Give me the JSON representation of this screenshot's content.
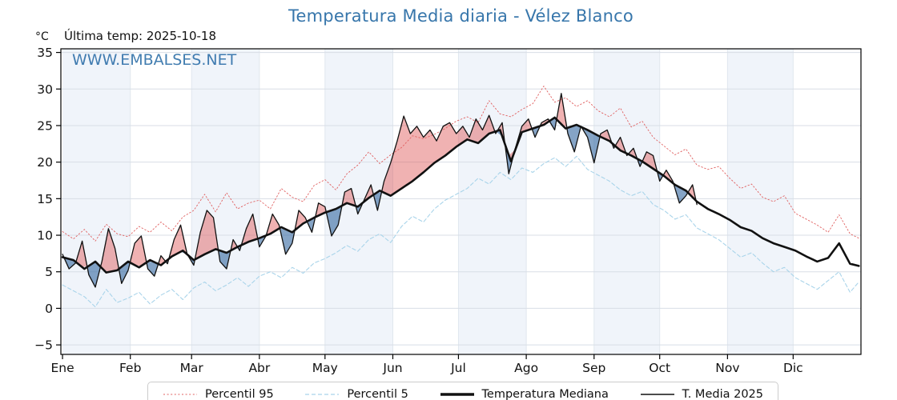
{
  "title": "Temperatura Media diaria - Vélez Blanco",
  "annotation": "Última temp: 2025-10-18",
  "unit": "°C",
  "watermark": "WWW.EMBALSES.NET",
  "colors": {
    "title": "#3776ab",
    "watermark": "#2e6fa8",
    "band": "#f0f4fa",
    "grid_h": "#d8dee6",
    "grid_v": "#e0e7ee",
    "axis": "#000000",
    "fill_above": "rgba(222,84,84,0.45)",
    "fill_below": "rgba(58,108,163,0.62)"
  },
  "chart_data": {
    "type": "line",
    "title": "Temperatura Media diaria - Vélez Blanco",
    "xlabel": "",
    "ylabel": "°C",
    "x_unit": "day_of_year",
    "xlim": [
      -0.75,
      365
    ],
    "ylim": [
      -6.3,
      35.5
    ],
    "grid": true,
    "x_tick_labels": [
      "Ene",
      "Feb",
      "Mar",
      "Abr",
      "May",
      "Jun",
      "Jul",
      "Ago",
      "Sep",
      "Oct",
      "Nov",
      "Dic"
    ],
    "month_start_days": [
      0,
      31,
      59,
      90,
      120,
      151,
      181,
      212,
      243,
      273,
      304,
      334,
      365
    ],
    "y_ticks": [
      -5,
      0,
      5,
      10,
      15,
      20,
      25,
      30,
      35
    ],
    "y_tick_labels": [
      "−5",
      "0",
      "5",
      "10",
      "15",
      "20",
      "25",
      "30",
      "35"
    ],
    "shaded_months": "alternating, starting with Ene",
    "series": [
      {
        "name": "Percentil 95",
        "style": "dotted",
        "color": "#e06060",
        "lw": 0.9,
        "x": [
          0,
          5,
          10,
          15,
          20,
          25,
          30,
          35,
          40,
          45,
          50,
          55,
          60,
          65,
          70,
          75,
          80,
          85,
          90,
          95,
          100,
          105,
          110,
          115,
          120,
          125,
          130,
          135,
          140,
          145,
          150,
          155,
          160,
          165,
          170,
          175,
          180,
          185,
          190,
          195,
          200,
          205,
          210,
          215,
          220,
          225,
          230,
          235,
          240,
          245,
          250,
          255,
          260,
          265,
          270,
          275,
          280,
          285,
          290,
          295,
          300,
          305,
          310,
          315,
          320,
          325,
          330,
          335,
          340,
          345,
          350,
          355,
          360,
          364
        ],
        "values": [
          10.5,
          9.5,
          10.8,
          9.2,
          11.5,
          10.2,
          9.8,
          11.2,
          10.4,
          11.8,
          10.6,
          12.5,
          13.4,
          15.6,
          13.2,
          15.8,
          13.6,
          14.4,
          14.8,
          13.6,
          16.4,
          15.2,
          14.6,
          16.8,
          17.6,
          16.2,
          18.4,
          19.6,
          21.4,
          19.8,
          21.0,
          22.0,
          23.6,
          23.2,
          23.8,
          24.6,
          25.6,
          26.2,
          25.4,
          28.4,
          26.6,
          26.2,
          27.2,
          28.0,
          30.4,
          28.2,
          28.8,
          27.6,
          28.4,
          27.0,
          26.2,
          27.4,
          24.8,
          25.6,
          23.4,
          22.2,
          21.0,
          21.8,
          19.6,
          19.0,
          19.4,
          17.8,
          16.4,
          17.0,
          15.2,
          14.6,
          15.4,
          13.0,
          12.2,
          11.4,
          10.4,
          12.8,
          10.2,
          9.6
        ]
      },
      {
        "name": "Percentil 5",
        "style": "dashed",
        "color": "#a9d4ea",
        "lw": 1.1,
        "x": [
          0,
          5,
          10,
          15,
          20,
          25,
          30,
          35,
          40,
          45,
          50,
          55,
          60,
          65,
          70,
          75,
          80,
          85,
          90,
          95,
          100,
          105,
          110,
          115,
          120,
          125,
          130,
          135,
          140,
          145,
          150,
          155,
          160,
          165,
          170,
          175,
          180,
          185,
          190,
          195,
          200,
          205,
          210,
          215,
          220,
          225,
          230,
          235,
          240,
          245,
          250,
          255,
          260,
          265,
          270,
          275,
          280,
          285,
          290,
          295,
          300,
          305,
          310,
          315,
          320,
          325,
          330,
          335,
          340,
          345,
          350,
          355,
          360,
          364
        ],
        "values": [
          3.2,
          2.4,
          1.6,
          0.2,
          2.6,
          0.8,
          1.4,
          2.2,
          0.6,
          1.8,
          2.6,
          1.2,
          2.8,
          3.6,
          2.4,
          3.2,
          4.2,
          3.0,
          4.4,
          5.0,
          4.2,
          5.6,
          4.8,
          6.2,
          6.8,
          7.6,
          8.6,
          7.8,
          9.4,
          10.2,
          9.0,
          11.2,
          12.6,
          11.8,
          13.6,
          14.8,
          15.6,
          16.4,
          17.8,
          17.0,
          18.6,
          17.6,
          19.2,
          18.6,
          19.8,
          20.6,
          19.4,
          20.8,
          19.0,
          18.2,
          17.4,
          16.2,
          15.4,
          16.0,
          14.2,
          13.4,
          12.2,
          12.8,
          11.0,
          10.2,
          9.4,
          8.2,
          7.0,
          7.6,
          6.2,
          5.0,
          5.6,
          4.2,
          3.4,
          2.6,
          3.8,
          5.0,
          2.2,
          3.6
        ]
      },
      {
        "name": "Temperatura Mediana",
        "style": "solid",
        "color": "#111111",
        "lw": 2.6,
        "x": [
          0,
          5,
          10,
          15,
          20,
          25,
          30,
          35,
          40,
          45,
          50,
          55,
          60,
          65,
          70,
          75,
          80,
          85,
          90,
          95,
          100,
          105,
          110,
          115,
          120,
          125,
          130,
          135,
          140,
          145,
          150,
          155,
          160,
          165,
          170,
          175,
          180,
          185,
          190,
          195,
          200,
          205,
          210,
          215,
          220,
          225,
          230,
          235,
          240,
          245,
          250,
          255,
          260,
          265,
          270,
          275,
          280,
          285,
          290,
          295,
          300,
          305,
          310,
          315,
          320,
          325,
          330,
          335,
          340,
          345,
          350,
          355,
          360,
          364
        ],
        "values": [
          7.0,
          6.6,
          5.4,
          6.4,
          4.9,
          5.2,
          6.4,
          5.6,
          6.6,
          5.9,
          7.1,
          7.9,
          6.6,
          7.4,
          8.1,
          7.6,
          8.4,
          9.1,
          9.6,
          10.2,
          11.1,
          10.4,
          11.6,
          12.4,
          13.1,
          13.6,
          14.4,
          13.9,
          15.1,
          16.1,
          15.4,
          16.4,
          17.4,
          18.6,
          19.9,
          20.9,
          22.1,
          23.1,
          22.6,
          23.9,
          24.4,
          20.1,
          24.1,
          24.6,
          25.1,
          26.1,
          24.6,
          25.1,
          24.4,
          23.6,
          22.9,
          21.6,
          20.9,
          20.1,
          19.1,
          18.1,
          16.9,
          16.1,
          14.6,
          13.6,
          12.9,
          12.1,
          11.1,
          10.6,
          9.6,
          8.9,
          8.4,
          7.9,
          7.1,
          6.4,
          6.9,
          8.9,
          6.1,
          5.8
        ]
      },
      {
        "name": "T. Media 2025",
        "style": "solid",
        "color": "#111111",
        "lw": 1.3,
        "last_date": "2025-10-18",
        "x": [
          0,
          3,
          6,
          9,
          12,
          15,
          18,
          21,
          24,
          27,
          30,
          33,
          36,
          39,
          42,
          45,
          48,
          51,
          54,
          57,
          60,
          63,
          66,
          69,
          72,
          75,
          78,
          81,
          84,
          87,
          90,
          93,
          96,
          99,
          102,
          105,
          108,
          111,
          114,
          117,
          120,
          123,
          126,
          129,
          132,
          135,
          138,
          141,
          144,
          147,
          150,
          153,
          156,
          159,
          162,
          165,
          168,
          171,
          174,
          177,
          180,
          183,
          186,
          189,
          192,
          195,
          198,
          201,
          204,
          207,
          210,
          213,
          216,
          219,
          222,
          225,
          228,
          231,
          234,
          237,
          240,
          243,
          246,
          249,
          252,
          255,
          258,
          261,
          264,
          267,
          270,
          273,
          276,
          279,
          282,
          285,
          288,
          290
        ],
        "values": [
          7.4,
          5.4,
          6.2,
          9.2,
          4.6,
          2.9,
          6.4,
          10.9,
          8.2,
          3.4,
          5.2,
          8.9,
          9.9,
          5.4,
          4.4,
          7.2,
          6.1,
          9.4,
          11.4,
          7.4,
          5.9,
          10.4,
          13.4,
          12.4,
          6.4,
          5.4,
          9.4,
          7.9,
          10.9,
          12.9,
          8.4,
          9.9,
          12.9,
          11.4,
          7.4,
          8.9,
          13.4,
          12.4,
          10.4,
          14.4,
          13.9,
          9.9,
          11.4,
          15.9,
          16.4,
          12.9,
          14.9,
          16.9,
          13.4,
          17.4,
          19.9,
          22.9,
          26.3,
          23.9,
          24.9,
          23.4,
          24.4,
          22.9,
          24.9,
          25.4,
          23.9,
          24.9,
          23.4,
          25.9,
          24.4,
          26.4,
          23.9,
          25.4,
          18.4,
          21.9,
          24.9,
          25.9,
          23.4,
          25.4,
          25.9,
          24.4,
          29.4,
          23.9,
          21.4,
          24.9,
          23.4,
          19.9,
          23.9,
          24.4,
          21.9,
          23.4,
          20.9,
          21.9,
          19.4,
          21.4,
          20.9,
          17.4,
          18.9,
          17.4,
          14.4,
          15.4,
          16.9,
          14.2
        ]
      }
    ],
    "fills": {
      "between": [
        "T. Media 2025",
        "Temperatura Mediana"
      ],
      "above_color": "rgba(222,84,84,0.45)",
      "below_color": "rgba(58,108,163,0.62)"
    },
    "legend": {
      "position": "bottom",
      "entries": [
        {
          "label": "Percentil 95",
          "style": "dotted",
          "color": "#e06060",
          "lw": 1
        },
        {
          "label": "Percentil 5",
          "style": "dashed",
          "color": "#a9d4ea",
          "lw": 1.2
        },
        {
          "label": "Temperatura Mediana",
          "style": "solid",
          "color": "#111111",
          "lw": 3.5
        },
        {
          "label": "T. Media 2025",
          "style": "solid",
          "color": "#111111",
          "lw": 1.4
        }
      ]
    }
  }
}
